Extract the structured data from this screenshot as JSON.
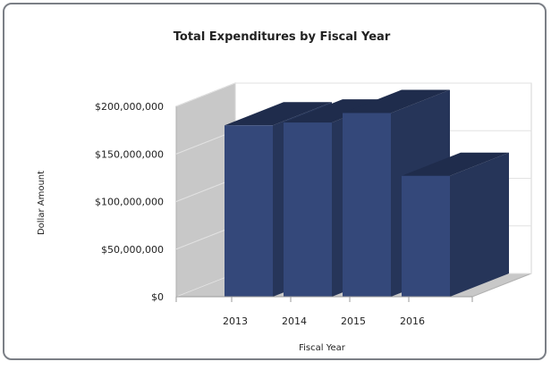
{
  "chart_data": {
    "type": "bar",
    "style": "3d",
    "title": "Total Expenditures by Fiscal Year",
    "xlabel": "Fiscal Year",
    "ylabel": "Dollar Amount",
    "categories": [
      "2013",
      "2014",
      "2015",
      "2016"
    ],
    "series": [
      {
        "values": [
          180000000,
          183000000,
          193000000,
          127000000
        ]
      }
    ],
    "ylim": [
      0,
      200000000
    ],
    "yticks": [
      "$0",
      "$50,000,000",
      "$100,000,000",
      "$150,000,000",
      "$200,000,000"
    ],
    "yticks_values": [
      0,
      50000000,
      100000000,
      150000000,
      200000000
    ],
    "grid": true,
    "legend": "none",
    "colors": {
      "bar_front": "#34487a",
      "bar_side": "#263559",
      "bar_top": "#1f2c4c",
      "wall": "#c8c8c8",
      "panel_border": "#7b7f86"
    }
  }
}
